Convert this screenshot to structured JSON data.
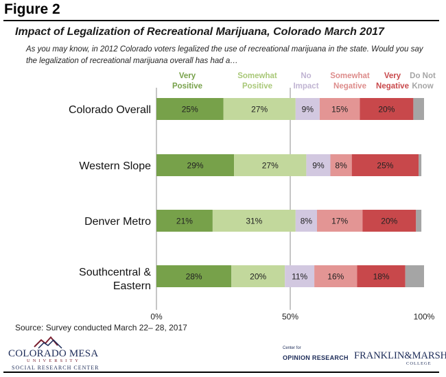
{
  "figure_label": "Figure 2",
  "title": "Impact of Legalization of Recreational Marijuana, Colorado March 2017",
  "subtitle": "As you may know, in 2012 Colorado voters legalized the use of recreational marijuana in the state. Would you say the legalization of recreational marijuana overall has had a…",
  "source": "Source: Survey conducted March 22– 28, 2017",
  "logos": {
    "left": {
      "main": "COLORADO MESA",
      "univ": "UNIVERSITY",
      "sub": "SOCIAL RESEARCH CENTER"
    },
    "right": {
      "center": "Center for",
      "opinion": "OPINION RESEARCH",
      "name": "FRANKLIN&MARSHALL",
      "college": "COLLEGE"
    }
  },
  "chart_data": {
    "type": "bar",
    "orientation": "horizontal",
    "stacked": true,
    "categories": [
      "Colorado Overall",
      "Western Slope",
      "Denver Metro",
      "Southcentral & Eastern"
    ],
    "series": [
      {
        "name": "Very Positive",
        "color": "#77a14a",
        "label_color": "#77a14a",
        "values": [
          25,
          29,
          21,
          28
        ]
      },
      {
        "name": "Somewhat Positive",
        "color": "#c2d89c",
        "label_color": "#a9c878",
        "values": [
          27,
          27,
          31,
          20
        ]
      },
      {
        "name": "No Impact",
        "color": "#d2c8e0",
        "label_color": "#c0b4d2",
        "values": [
          9,
          9,
          8,
          11
        ]
      },
      {
        "name": "Somewhat Negative",
        "color": "#e39594",
        "label_color": "#dd8c8b",
        "values": [
          15,
          8,
          17,
          16
        ]
      },
      {
        "name": "Very Negative",
        "color": "#c8484b",
        "label_color": "#c8484b",
        "values": [
          20,
          25,
          20,
          18
        ]
      },
      {
        "name": "Do Not Know",
        "color": "#a5a5a5",
        "label_color": "#a5a5a5",
        "values": [
          4,
          1,
          2,
          7
        ]
      }
    ],
    "data_labels": [
      [
        "25%",
        "27%",
        "9%",
        "15%",
        "20%",
        ""
      ],
      [
        "29%",
        "27%",
        "9%",
        "8%",
        "25%",
        ""
      ],
      [
        "21%",
        "31%",
        "8%",
        "17%",
        "20%",
        ""
      ],
      [
        "28%",
        "20%",
        "11%",
        "16%",
        "18%",
        ""
      ]
    ],
    "legend_headers": [
      [
        "Very",
        "Positive"
      ],
      [
        "Somewhat",
        "Positive"
      ],
      [
        "No",
        "Impact"
      ],
      [
        "Somewhat",
        "Negative"
      ],
      [
        "Very",
        "Negative"
      ],
      [
        "Do Not",
        "Know"
      ]
    ],
    "x_ticks": [
      "0%",
      "50%",
      "100%"
    ],
    "xlim": [
      0,
      100
    ],
    "gridlines": [
      50
    ]
  }
}
